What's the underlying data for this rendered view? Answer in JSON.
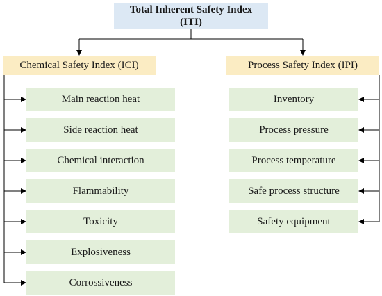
{
  "root": {
    "title": "Total Inherent Safety Index",
    "abbr_prefix": "(I",
    "abbr_sub": "TI",
    "abbr_suffix": ")"
  },
  "left": {
    "title_prefix": "Chemical Safety Index (I",
    "title_sub": "CI",
    "title_suffix": ")",
    "items": [
      "Main reaction heat",
      "Side reaction heat",
      "Chemical interaction",
      "Flammability",
      "Toxicity",
      "Explosiveness",
      "Corrossiveness"
    ]
  },
  "right": {
    "title_prefix": "Process Safety Index (I",
    "title_sub": "PI",
    "title_suffix": ")",
    "items": [
      "Inventory",
      "Process pressure",
      "Process temperature",
      "Safe process structure",
      "Safety equipment"
    ]
  },
  "colors": {
    "root_fill": "#dce8f4",
    "category_fill": "#fbecc3",
    "leaf_fill": "#e3efda",
    "line": "#000000"
  }
}
